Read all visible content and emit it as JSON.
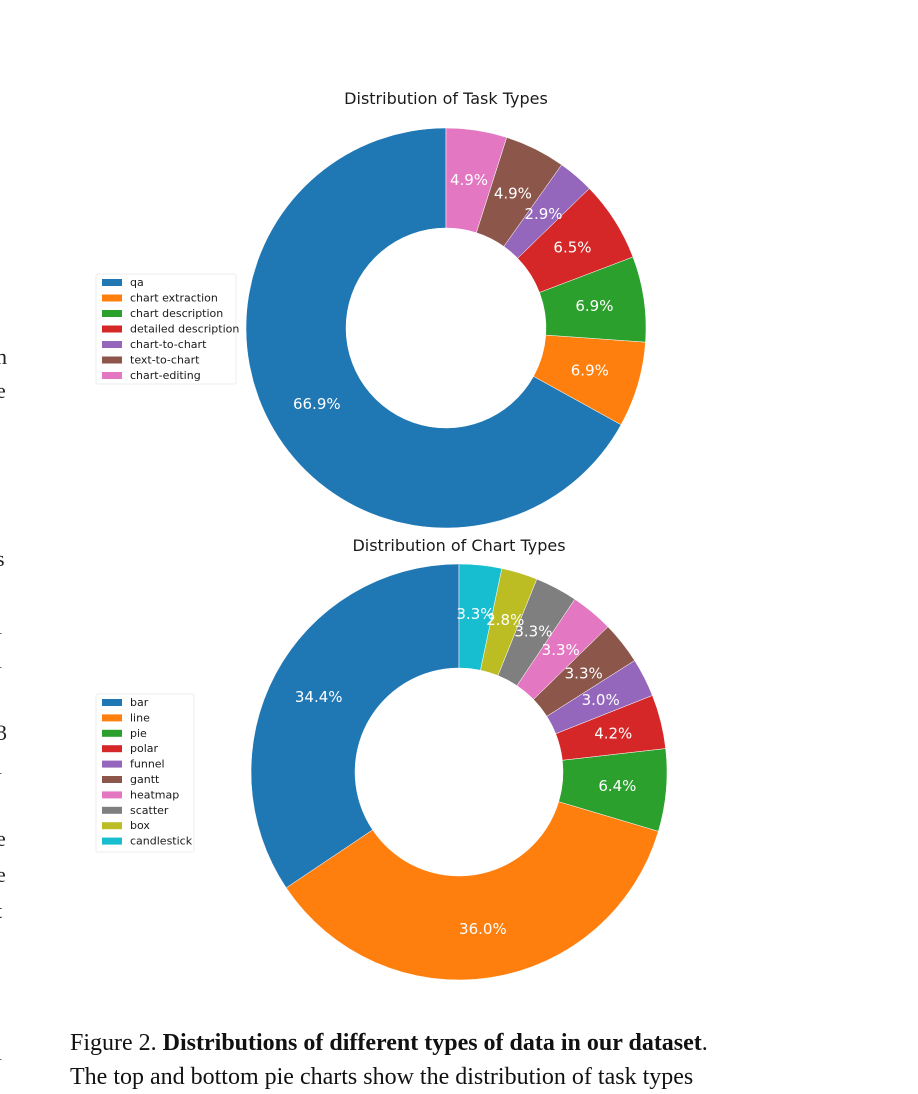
{
  "margin_glyphs": [
    "n",
    "e",
    ".",
    "s",
    ".",
    "l",
    "l",
    ".",
    "3",
    "l",
    ".",
    "e",
    "e",
    "t",
    ".",
    "l"
  ],
  "chart_data": [
    {
      "type": "pie",
      "style": "donut",
      "title": "Distribution of Task Types",
      "legend_position": "left",
      "start_angle": 90,
      "direction": "counterclockwise",
      "slices": [
        {
          "label": "qa",
          "value": 66.9,
          "display": "66.9%",
          "color": "#1f77b4"
        },
        {
          "label": "chart extraction",
          "value": 6.9,
          "display": "6.9%",
          "color": "#ff7f0e"
        },
        {
          "label": "chart description",
          "value": 6.9,
          "display": "6.9%",
          "color": "#2ca02c"
        },
        {
          "label": "detailed description",
          "value": 6.5,
          "display": "6.5%",
          "color": "#d62728"
        },
        {
          "label": "chart-to-chart",
          "value": 2.9,
          "display": "2.9%",
          "color": "#9467bd"
        },
        {
          "label": "text-to-chart",
          "value": 4.9,
          "display": "4.9%",
          "color": "#8c564b"
        },
        {
          "label": "chart-editing",
          "value": 4.9,
          "display": "4.9%",
          "color": "#e377c2"
        }
      ]
    },
    {
      "type": "pie",
      "style": "donut",
      "title": "Distribution of Chart Types",
      "legend_position": "left",
      "start_angle": 90,
      "direction": "counterclockwise",
      "slices": [
        {
          "label": "bar",
          "value": 34.4,
          "display": "34.4%",
          "color": "#1f77b4"
        },
        {
          "label": "line",
          "value": 36.0,
          "display": "36.0%",
          "color": "#ff7f0e"
        },
        {
          "label": "pie",
          "value": 6.4,
          "display": "6.4%",
          "color": "#2ca02c"
        },
        {
          "label": "polar",
          "value": 4.2,
          "display": "4.2%",
          "color": "#d62728"
        },
        {
          "label": "funnel",
          "value": 3.0,
          "display": "3.0%",
          "color": "#9467bd"
        },
        {
          "label": "gantt",
          "value": 3.3,
          "display": "3.3%",
          "color": "#8c564b"
        },
        {
          "label": "heatmap",
          "value": 3.3,
          "display": "3.3%",
          "color": "#e377c2"
        },
        {
          "label": "scatter",
          "value": 3.3,
          "display": "3.3%",
          "color": "#7f7f7f"
        },
        {
          "label": "box",
          "value": 2.8,
          "display": "2.8%",
          "color": "#bcbd22"
        },
        {
          "label": "candlestick",
          "value": 3.3,
          "display": "3.3%",
          "color": "#17becf"
        }
      ]
    }
  ],
  "caption": {
    "prefix": "Figure 2. ",
    "bold": "Distributions of different types of data in our dataset",
    "suffix": ".",
    "line2": "The top and bottom pie charts show the distribution of task types"
  }
}
